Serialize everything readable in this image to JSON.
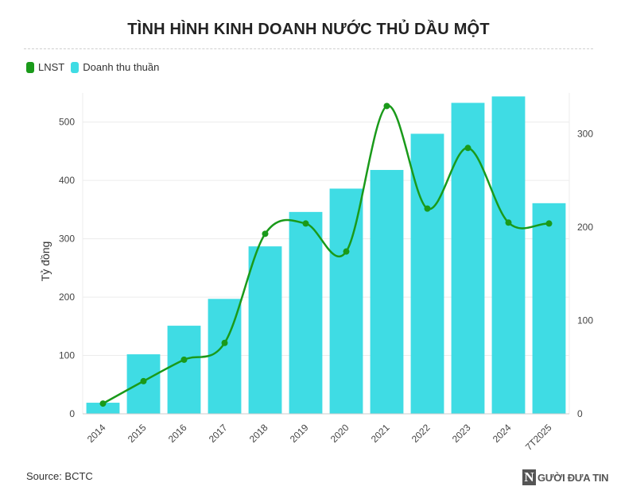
{
  "title": "TÌNH HÌNH KINH DOANH NƯỚC THỦ DẦU MỘT",
  "legend": [
    {
      "label": "LNST",
      "color": "#1a9a1a"
    },
    {
      "label": "Doanh thu thuần",
      "color": "#3fdce4"
    }
  ],
  "source": "Source: BCTC",
  "logo": {
    "mark": "N",
    "text": "GƯỜI ĐƯA TIN"
  },
  "chart_data": {
    "type": "bar",
    "categories": [
      "2014",
      "2015",
      "2016",
      "2017",
      "2018",
      "2019",
      "2020",
      "2021",
      "2022",
      "2023",
      "2024",
      "7T2025"
    ],
    "series": [
      {
        "name": "Doanh thu thuần",
        "type": "bar",
        "axis": "left",
        "color": "#3fdce4",
        "values": [
          19,
          102,
          151,
          197,
          287,
          346,
          386,
          418,
          480,
          533,
          544,
          361
        ]
      },
      {
        "name": "LNST",
        "type": "line",
        "axis": "right",
        "color": "#1a9a1a",
        "values": [
          11,
          35,
          58,
          76,
          193,
          204,
          174,
          330,
          220,
          285,
          205,
          204
        ]
      }
    ],
    "ylabel": "Tỷ đồng",
    "ylim": [
      0,
      550
    ],
    "yticks": [
      0,
      100,
      200,
      300,
      400,
      500
    ],
    "y2lim": [
      0,
      344
    ],
    "y2ticks": [
      0,
      100,
      200,
      300
    ],
    "grid": true,
    "legend_position": "top-left"
  }
}
